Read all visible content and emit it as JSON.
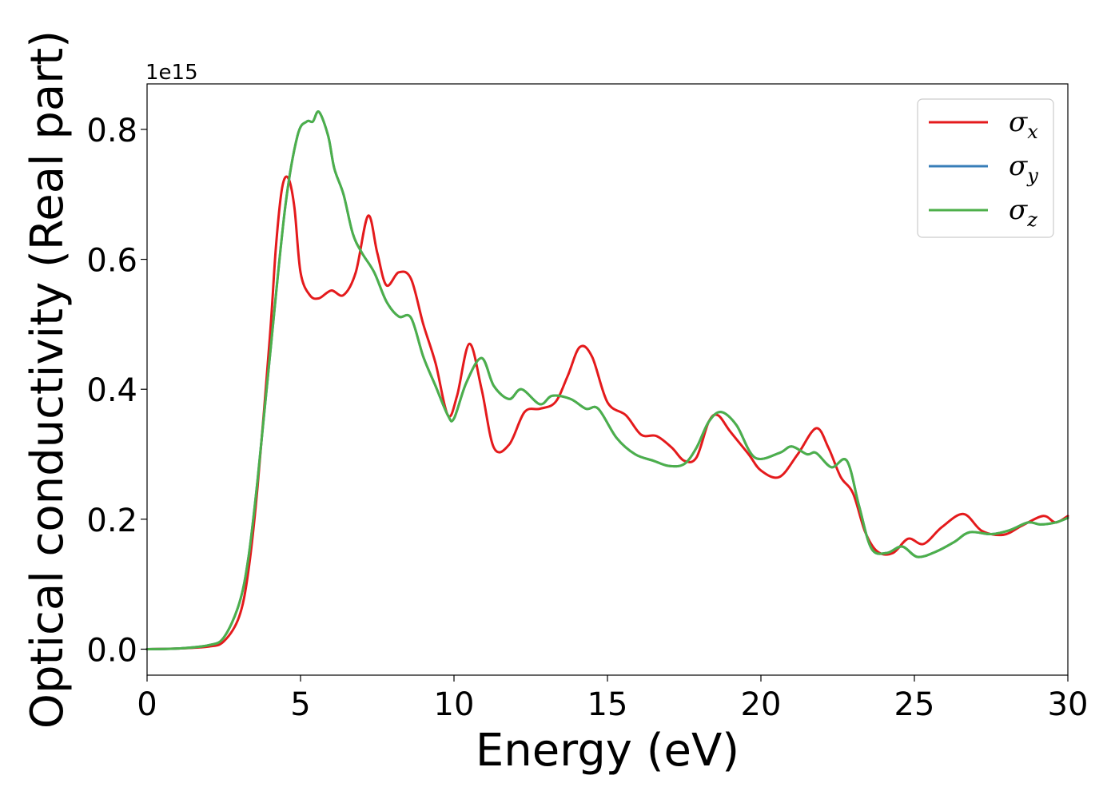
{
  "chart_data": {
    "type": "line",
    "xlabel": "Energy (eV)",
    "ylabel": "Optical conductivity (Real part)",
    "y_offset_text": "1e15",
    "xlim": [
      0,
      30
    ],
    "ylim": [
      -0.04,
      0.87
    ],
    "x_ticks": [
      0,
      5,
      10,
      15,
      20,
      25,
      30
    ],
    "x_tick_labels": [
      "0",
      "5",
      "10",
      "15",
      "20",
      "25",
      "30"
    ],
    "y_ticks": [
      0.0,
      0.2,
      0.4,
      0.6,
      0.8
    ],
    "y_tick_labels": [
      "0.0",
      "0.2",
      "0.4",
      "0.6",
      "0.8"
    ],
    "grid": false,
    "legend_position": "top-right",
    "series": [
      {
        "name": "σx",
        "symbol": "σ",
        "subscript": "x",
        "color": "#e41a1c",
        "points": [
          [
            0,
            0
          ],
          [
            1,
            0.001
          ],
          [
            2,
            0.004
          ],
          [
            2.5,
            0.012
          ],
          [
            3,
            0.05
          ],
          [
            3.3,
            0.12
          ],
          [
            3.6,
            0.25
          ],
          [
            4,
            0.48
          ],
          [
            4.2,
            0.62
          ],
          [
            4.4,
            0.71
          ],
          [
            4.6,
            0.725
          ],
          [
            4.8,
            0.68
          ],
          [
            5,
            0.58
          ],
          [
            5.3,
            0.545
          ],
          [
            5.6,
            0.54
          ],
          [
            6,
            0.552
          ],
          [
            6.4,
            0.545
          ],
          [
            6.8,
            0.58
          ],
          [
            7.2,
            0.667
          ],
          [
            7.5,
            0.61
          ],
          [
            7.8,
            0.56
          ],
          [
            8.2,
            0.58
          ],
          [
            8.6,
            0.57
          ],
          [
            9,
            0.5
          ],
          [
            9.4,
            0.44
          ],
          [
            9.8,
            0.36
          ],
          [
            10.1,
            0.39
          ],
          [
            10.5,
            0.47
          ],
          [
            10.9,
            0.4
          ],
          [
            11.3,
            0.31
          ],
          [
            11.8,
            0.315
          ],
          [
            12.3,
            0.365
          ],
          [
            12.8,
            0.37
          ],
          [
            13.3,
            0.38
          ],
          [
            13.7,
            0.42
          ],
          [
            14.1,
            0.465
          ],
          [
            14.5,
            0.45
          ],
          [
            15,
            0.38
          ],
          [
            15.6,
            0.36
          ],
          [
            16.1,
            0.33
          ],
          [
            16.6,
            0.328
          ],
          [
            17.1,
            0.31
          ],
          [
            17.5,
            0.29
          ],
          [
            17.9,
            0.295
          ],
          [
            18.3,
            0.35
          ],
          [
            18.6,
            0.36
          ],
          [
            19,
            0.335
          ],
          [
            19.6,
            0.3
          ],
          [
            20,
            0.275
          ],
          [
            20.6,
            0.265
          ],
          [
            21.2,
            0.3
          ],
          [
            21.8,
            0.34
          ],
          [
            22.2,
            0.31
          ],
          [
            22.6,
            0.265
          ],
          [
            23,
            0.24
          ],
          [
            23.4,
            0.18
          ],
          [
            23.8,
            0.15
          ],
          [
            24.3,
            0.148
          ],
          [
            24.8,
            0.17
          ],
          [
            25.3,
            0.162
          ],
          [
            25.9,
            0.188
          ],
          [
            26.6,
            0.208
          ],
          [
            27.2,
            0.182
          ],
          [
            27.9,
            0.176
          ],
          [
            28.5,
            0.19
          ],
          [
            29.2,
            0.205
          ],
          [
            29.6,
            0.195
          ],
          [
            30,
            0.205
          ]
        ]
      },
      {
        "name": "σy",
        "symbol": "σ",
        "subscript": "y",
        "color": "#377eb8",
        "points": [
          [
            0,
            0
          ],
          [
            1,
            0.001
          ],
          [
            2,
            0.006
          ],
          [
            2.5,
            0.018
          ],
          [
            3,
            0.07
          ],
          [
            3.3,
            0.14
          ],
          [
            3.6,
            0.26
          ],
          [
            4,
            0.45
          ],
          [
            4.5,
            0.68
          ],
          [
            4.9,
            0.79
          ],
          [
            5.2,
            0.812
          ],
          [
            5.4,
            0.812
          ],
          [
            5.6,
            0.827
          ],
          [
            5.9,
            0.79
          ],
          [
            6.1,
            0.74
          ],
          [
            6.4,
            0.7
          ],
          [
            6.7,
            0.64
          ],
          [
            7,
            0.61
          ],
          [
            7.4,
            0.58
          ],
          [
            7.8,
            0.535
          ],
          [
            8.2,
            0.512
          ],
          [
            8.6,
            0.51
          ],
          [
            9,
            0.45
          ],
          [
            9.4,
            0.405
          ],
          [
            9.8,
            0.36
          ],
          [
            10,
            0.355
          ],
          [
            10.4,
            0.41
          ],
          [
            10.9,
            0.448
          ],
          [
            11.3,
            0.405
          ],
          [
            11.8,
            0.385
          ],
          [
            12.2,
            0.4
          ],
          [
            12.8,
            0.377
          ],
          [
            13.2,
            0.39
          ],
          [
            13.8,
            0.385
          ],
          [
            14.3,
            0.37
          ],
          [
            14.7,
            0.37
          ],
          [
            15.3,
            0.325
          ],
          [
            15.9,
            0.3
          ],
          [
            16.5,
            0.29
          ],
          [
            17,
            0.282
          ],
          [
            17.5,
            0.285
          ],
          [
            17.9,
            0.31
          ],
          [
            18.3,
            0.35
          ],
          [
            18.7,
            0.365
          ],
          [
            19.2,
            0.345
          ],
          [
            19.8,
            0.295
          ],
          [
            20.6,
            0.302
          ],
          [
            21,
            0.312
          ],
          [
            21.5,
            0.3
          ],
          [
            21.8,
            0.302
          ],
          [
            22.3,
            0.28
          ],
          [
            22.8,
            0.29
          ],
          [
            23.2,
            0.22
          ],
          [
            23.6,
            0.155
          ],
          [
            24.1,
            0.148
          ],
          [
            24.6,
            0.158
          ],
          [
            25.1,
            0.142
          ],
          [
            25.7,
            0.15
          ],
          [
            26.3,
            0.165
          ],
          [
            26.8,
            0.18
          ],
          [
            27.5,
            0.177
          ],
          [
            28.1,
            0.183
          ],
          [
            28.7,
            0.195
          ],
          [
            29.1,
            0.192
          ],
          [
            29.6,
            0.195
          ],
          [
            30,
            0.202
          ]
        ]
      },
      {
        "name": "σz",
        "symbol": "σ",
        "subscript": "z",
        "color": "#4daf4a",
        "points": [
          [
            0,
            0
          ],
          [
            1,
            0.001
          ],
          [
            2,
            0.006
          ],
          [
            2.5,
            0.018
          ],
          [
            3,
            0.07
          ],
          [
            3.3,
            0.14
          ],
          [
            3.6,
            0.26
          ],
          [
            4,
            0.45
          ],
          [
            4.5,
            0.68
          ],
          [
            4.9,
            0.79
          ],
          [
            5.2,
            0.812
          ],
          [
            5.4,
            0.812
          ],
          [
            5.6,
            0.827
          ],
          [
            5.9,
            0.79
          ],
          [
            6.1,
            0.74
          ],
          [
            6.4,
            0.7
          ],
          [
            6.7,
            0.64
          ],
          [
            7,
            0.61
          ],
          [
            7.4,
            0.58
          ],
          [
            7.8,
            0.535
          ],
          [
            8.2,
            0.512
          ],
          [
            8.6,
            0.51
          ],
          [
            9,
            0.45
          ],
          [
            9.4,
            0.405
          ],
          [
            9.8,
            0.36
          ],
          [
            10,
            0.355
          ],
          [
            10.4,
            0.41
          ],
          [
            10.9,
            0.448
          ],
          [
            11.3,
            0.405
          ],
          [
            11.8,
            0.385
          ],
          [
            12.2,
            0.4
          ],
          [
            12.8,
            0.377
          ],
          [
            13.2,
            0.39
          ],
          [
            13.8,
            0.385
          ],
          [
            14.3,
            0.37
          ],
          [
            14.7,
            0.37
          ],
          [
            15.3,
            0.325
          ],
          [
            15.9,
            0.3
          ],
          [
            16.5,
            0.29
          ],
          [
            17,
            0.282
          ],
          [
            17.5,
            0.285
          ],
          [
            17.9,
            0.31
          ],
          [
            18.3,
            0.35
          ],
          [
            18.7,
            0.365
          ],
          [
            19.2,
            0.345
          ],
          [
            19.8,
            0.295
          ],
          [
            20.6,
            0.302
          ],
          [
            21,
            0.312
          ],
          [
            21.5,
            0.3
          ],
          [
            21.8,
            0.302
          ],
          [
            22.3,
            0.28
          ],
          [
            22.8,
            0.29
          ],
          [
            23.2,
            0.22
          ],
          [
            23.6,
            0.155
          ],
          [
            24.1,
            0.148
          ],
          [
            24.6,
            0.158
          ],
          [
            25.1,
            0.142
          ],
          [
            25.7,
            0.15
          ],
          [
            26.3,
            0.165
          ],
          [
            26.8,
            0.18
          ],
          [
            27.5,
            0.177
          ],
          [
            28.1,
            0.183
          ],
          [
            28.7,
            0.195
          ],
          [
            29.1,
            0.192
          ],
          [
            29.6,
            0.195
          ],
          [
            30,
            0.202
          ]
        ]
      }
    ]
  }
}
